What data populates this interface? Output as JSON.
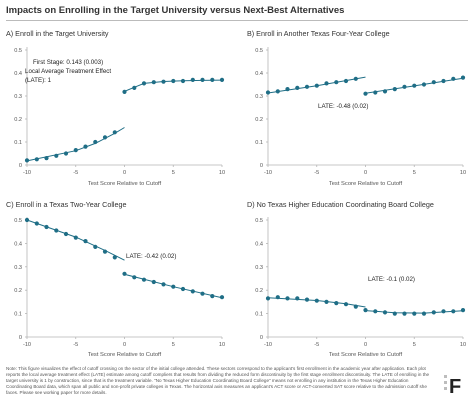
{
  "title": "Impacts on Enrolling in the Target University versus Next-Best Alternatives",
  "note": "Note: This figure visualizes the effect of cutoff crossing on the sector of the initial college attended. These sectors correspond to the applicant's first enrollment in the academic year after application. Each plot reports the local average treatment effect (LATE) estimate among cutoff compliers that results from dividing the reduced form discontinuity by the first stage enrollment discontinuity. The LATE of enrolling in the target university is 1 by construction, since that is the treatment variable. \"No Texas Higher Education Coordinating Board College\" means not enrolling in any institution in the Texas Higher Education Coordinating Board data, which span all public and non-profit private colleges in Texas. The horizontal axis measures an applicant's ACT score or ACT-converted SAT score relative to the admission cutoff she faces. Please see working paper for more details.",
  "logo_text": "F",
  "colors": {
    "dot": "#1f6e86",
    "axis": "#b5b5b5",
    "text": "#333333"
  },
  "chart_data": [
    {
      "type": "scatter",
      "title": "A) Enroll in the Target University",
      "xlabel": "Test Score Relative to Cutoff",
      "ylabel": "",
      "xlim": [
        -10,
        10
      ],
      "ylim": [
        0,
        0.5
      ],
      "xticks": [
        -10,
        -5,
        0,
        5,
        10
      ],
      "yticks": [
        0,
        0.1,
        0.2,
        0.3,
        0.4,
        0.5
      ],
      "ytick_labels": [
        "0",
        "0.1",
        "0.2",
        "0.3",
        "0.4",
        "0.5"
      ],
      "annotation": [
        "First Stage: 0.143 (0.003)",
        "Local Average Treatment Effect",
        "(LATE): 1"
      ],
      "left": {
        "x": [
          -10,
          -9,
          -8,
          -7,
          -6,
          -5,
          -4,
          -3,
          -2,
          -1
        ],
        "y": [
          0.02,
          0.025,
          0.03,
          0.04,
          0.05,
          0.065,
          0.08,
          0.1,
          0.12,
          0.142
        ]
      },
      "right": {
        "x": [
          0,
          1,
          2,
          3,
          4,
          5,
          6,
          7,
          8,
          9,
          10
        ],
        "y": [
          0.318,
          0.335,
          0.355,
          0.36,
          0.362,
          0.365,
          0.365,
          0.37,
          0.37,
          0.37,
          0.37
        ]
      },
      "left_fit": [
        [
          -10,
          0.018
        ],
        [
          -5,
          0.062
        ],
        [
          -3,
          0.094
        ],
        [
          -1,
          0.138
        ],
        [
          0,
          0.163
        ]
      ],
      "right_fit": [
        [
          0,
          0.32
        ],
        [
          1,
          0.338
        ],
        [
          2,
          0.355
        ],
        [
          4,
          0.363
        ],
        [
          6,
          0.366
        ],
        [
          8,
          0.368
        ],
        [
          10,
          0.369
        ]
      ]
    },
    {
      "type": "scatter",
      "title": "B) Enroll in Another Texas Four-Year College",
      "xlabel": "Test Score Relative to Cutoff",
      "ylabel": "",
      "xlim": [
        -10,
        10
      ],
      "ylim": [
        0,
        0.5
      ],
      "xticks": [
        -10,
        -5,
        0,
        5,
        10
      ],
      "yticks": [
        0,
        0.1,
        0.2,
        0.3,
        0.4,
        0.5
      ],
      "ytick_labels": [
        "0",
        "0.1",
        "0.2",
        "0.3",
        "0.4",
        "0.5"
      ],
      "annotation": [
        "LATE: -0.48 (0.02)"
      ],
      "left": {
        "x": [
          -10,
          -9,
          -8,
          -7,
          -6,
          -5,
          -4,
          -3,
          -2,
          -1
        ],
        "y": [
          0.315,
          0.32,
          0.33,
          0.335,
          0.34,
          0.345,
          0.355,
          0.36,
          0.365,
          0.375
        ]
      },
      "right": {
        "x": [
          0,
          1,
          2,
          3,
          4,
          5,
          6,
          7,
          8,
          9,
          10
        ],
        "y": [
          0.31,
          0.315,
          0.32,
          0.33,
          0.34,
          0.345,
          0.35,
          0.36,
          0.365,
          0.375,
          0.38
        ]
      },
      "left_fit": [
        [
          -10,
          0.313
        ],
        [
          -5,
          0.345
        ],
        [
          0,
          0.382
        ]
      ],
      "right_fit": [
        [
          0,
          0.312
        ],
        [
          5,
          0.344
        ],
        [
          10,
          0.377
        ]
      ]
    },
    {
      "type": "scatter",
      "title": "C) Enroll in a Texas Two-Year College",
      "xlabel": "Test Score Relative to Cutoff",
      "ylabel": "",
      "xlim": [
        -10,
        10
      ],
      "ylim": [
        0,
        0.5
      ],
      "xticks": [
        -10,
        -5,
        0,
        5,
        10
      ],
      "yticks": [
        0,
        0.1,
        0.2,
        0.3,
        0.4,
        0.5
      ],
      "ytick_labels": [
        "0",
        "0.1",
        "0.2",
        "0.3",
        "0.4",
        "0.5"
      ],
      "annotation": [
        "LATE: -0.42 (0.02)"
      ],
      "left": {
        "x": [
          -10,
          -9,
          -8,
          -7,
          -6,
          -5,
          -4,
          -3,
          -2,
          -1
        ],
        "y": [
          0.5,
          0.485,
          0.47,
          0.455,
          0.44,
          0.425,
          0.41,
          0.385,
          0.365,
          0.34
        ]
      },
      "right": {
        "x": [
          0,
          1,
          2,
          3,
          4,
          5,
          6,
          7,
          8,
          9,
          10
        ],
        "y": [
          0.27,
          0.255,
          0.245,
          0.235,
          0.225,
          0.215,
          0.205,
          0.195,
          0.185,
          0.175,
          0.17
        ]
      },
      "left_fit": [
        [
          -10,
          0.5
        ],
        [
          -5,
          0.427
        ],
        [
          -2,
          0.37
        ],
        [
          0,
          0.328
        ]
      ],
      "right_fit": [
        [
          0,
          0.268
        ],
        [
          5,
          0.215
        ],
        [
          10,
          0.168
        ]
      ]
    },
    {
      "type": "scatter",
      "title": "D) No Texas Higher Education Coordinating Board College",
      "xlabel": "Test Score Relative to Cutoff",
      "ylabel": "",
      "xlim": [
        -10,
        10
      ],
      "ylim": [
        0,
        0.5
      ],
      "xticks": [
        -10,
        -5,
        0,
        5,
        10
      ],
      "yticks": [
        0,
        0.1,
        0.2,
        0.3,
        0.4,
        0.5
      ],
      "ytick_labels": [
        "0",
        "0.1",
        "0.2",
        "0.3",
        "0.4",
        "0.5"
      ],
      "annotation": [
        "LATE: -0.1 (0.02)"
      ],
      "left": {
        "x": [
          -10,
          -9,
          -8,
          -7,
          -6,
          -5,
          -4,
          -3,
          -2,
          -1
        ],
        "y": [
          0.165,
          0.17,
          0.165,
          0.165,
          0.16,
          0.155,
          0.15,
          0.145,
          0.14,
          0.13
        ]
      },
      "right": {
        "x": [
          0,
          1,
          2,
          3,
          4,
          5,
          6,
          7,
          8,
          9,
          10
        ],
        "y": [
          0.115,
          0.11,
          0.105,
          0.1,
          0.1,
          0.1,
          0.1,
          0.105,
          0.11,
          0.11,
          0.115
        ]
      },
      "left_fit": [
        [
          -10,
          0.168
        ],
        [
          -5,
          0.156
        ],
        [
          -2,
          0.142
        ],
        [
          0,
          0.128
        ]
      ],
      "right_fit": [
        [
          0,
          0.113
        ],
        [
          3,
          0.104
        ],
        [
          6,
          0.102
        ],
        [
          10,
          0.112
        ]
      ]
    }
  ]
}
